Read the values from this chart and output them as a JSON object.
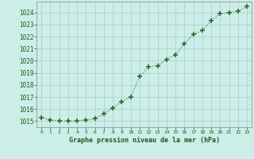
{
  "x": [
    0,
    1,
    2,
    3,
    4,
    5,
    6,
    7,
    8,
    9,
    10,
    11,
    12,
    13,
    14,
    15,
    16,
    17,
    18,
    19,
    20,
    21,
    22,
    23
  ],
  "y": [
    1015.3,
    1015.1,
    1015.0,
    1015.0,
    1015.0,
    1015.1,
    1015.2,
    1015.6,
    1016.1,
    1016.6,
    1017.0,
    1018.7,
    1019.5,
    1019.6,
    1020.1,
    1020.5,
    1021.4,
    1022.2,
    1022.5,
    1023.3,
    1023.9,
    1024.0,
    1024.1,
    1024.5
  ],
  "xlabel": "Graphe pression niveau de la mer (hPa)",
  "ylim_min": 1014.5,
  "ylim_max": 1024.9,
  "xlim_min": -0.5,
  "xlim_max": 23.5,
  "line_color": "#2d6a2d",
  "marker_color": "#2d6a2d",
  "bg_color": "#cceee8",
  "grid_color": "#aacccc",
  "tick_label_color": "#1a5c1a",
  "title_color": "#1a5c1a",
  "ytick_values": [
    1015,
    1016,
    1017,
    1018,
    1019,
    1020,
    1021,
    1022,
    1023,
    1024
  ],
  "xtick_values": [
    0,
    1,
    2,
    3,
    4,
    5,
    6,
    7,
    8,
    9,
    10,
    11,
    12,
    13,
    14,
    15,
    16,
    17,
    18,
    19,
    20,
    21,
    22,
    23
  ]
}
